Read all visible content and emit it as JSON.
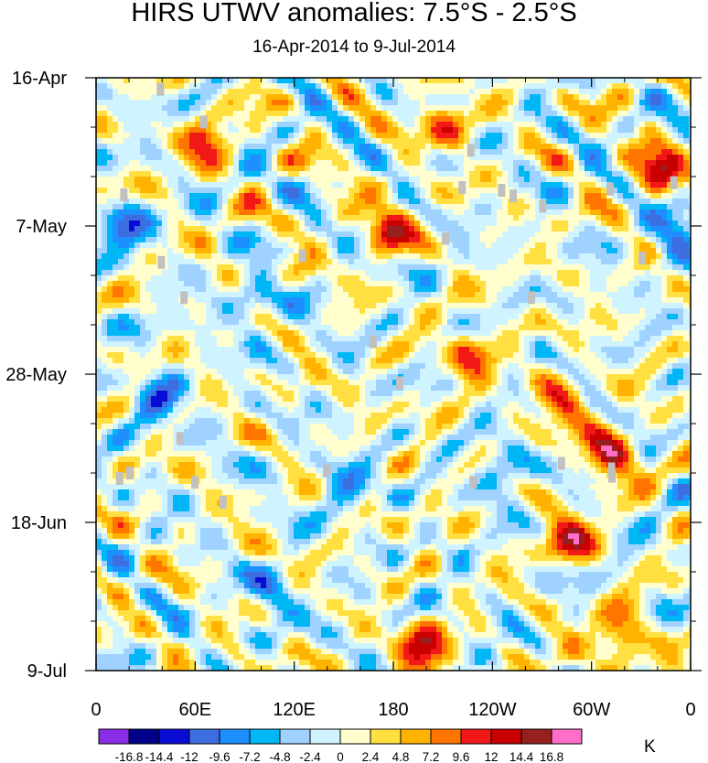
{
  "chart_data": {
    "type": "heatmap",
    "title": "HIRS UTWV anomalies: 7.5°S - 2.5°S",
    "subtitle": "16-Apr-2014 to 9-Jul-2014",
    "xlabel": "",
    "ylabel": "",
    "x_ticks": [
      "0",
      "60E",
      "120E",
      "180",
      "120W",
      "60W",
      "0"
    ],
    "x_tick_values": [
      0,
      60,
      120,
      180,
      240,
      300,
      360
    ],
    "xlim": [
      0,
      360
    ],
    "y_ticks": [
      "16-Apr",
      "7-May",
      "28-May",
      "18-Jun",
      "9-Jul"
    ],
    "y_tick_values": [
      "2014-04-16",
      "2014-05-07",
      "2014-05-28",
      "2014-06-18",
      "2014-07-09"
    ],
    "ylim": [
      "2014-04-16",
      "2014-07-09"
    ],
    "colorbar": {
      "unit": "K",
      "levels": [
        -16.8,
        -14.4,
        -12,
        -9.6,
        -7.2,
        -4.8,
        -2.4,
        0,
        2.4,
        4.8,
        7.2,
        9.6,
        12,
        14.4,
        16.8
      ],
      "level_labels": [
        "-16.8",
        "-14.4",
        "-12",
        "-9.6",
        "-7.2",
        "-4.8",
        "-2.4",
        "0",
        "2.4",
        "4.8",
        "7.2",
        "9.6",
        "12",
        "14.4",
        "16.8"
      ],
      "colors": [
        "#8a2ee6",
        "#00008b",
        "#0b0bd6",
        "#3d6ee0",
        "#1e8fff",
        "#00b7f5",
        "#9fd2ff",
        "#d0f4ff",
        "#fffecc",
        "#ffe040",
        "#ffb300",
        "#ff7500",
        "#f21818",
        "#c80000",
        "#962020",
        "#ff6ec8"
      ]
    },
    "missing_color": "#c0c0c0",
    "hotspots": [
      {
        "lon": 175,
        "date": "2014-05-07",
        "value": 12
      },
      {
        "lon": 210,
        "date": "2014-04-22",
        "value": 9.6
      },
      {
        "lon": 310,
        "date": "2014-06-08",
        "value": 14.4
      },
      {
        "lon": 285,
        "date": "2014-06-20",
        "value": 12
      },
      {
        "lon": 195,
        "date": "2014-07-06",
        "value": 14.4
      },
      {
        "lon": 65,
        "date": "2014-04-25",
        "value": 9.6
      },
      {
        "lon": 315,
        "date": "2014-07-04",
        "value": 12
      },
      {
        "lon": 340,
        "date": "2014-04-28",
        "value": 12
      },
      {
        "lon": 225,
        "date": "2014-05-25",
        "value": 9.6
      },
      {
        "lon": 280,
        "date": "2014-06-01",
        "value": 9.6
      },
      {
        "lon": 35,
        "date": "2014-05-31",
        "value": -9.6
      },
      {
        "lon": 15,
        "date": "2014-05-07",
        "value": -9.6
      },
      {
        "lon": 95,
        "date": "2014-05-18",
        "value": -7.2
      },
      {
        "lon": 245,
        "date": "2014-06-10",
        "value": -7.2
      },
      {
        "lon": 150,
        "date": "2014-06-12",
        "value": -7.2
      },
      {
        "lon": 105,
        "date": "2014-06-28",
        "value": -7.2
      },
      {
        "lon": 350,
        "date": "2014-05-08",
        "value": -9.6
      }
    ]
  }
}
